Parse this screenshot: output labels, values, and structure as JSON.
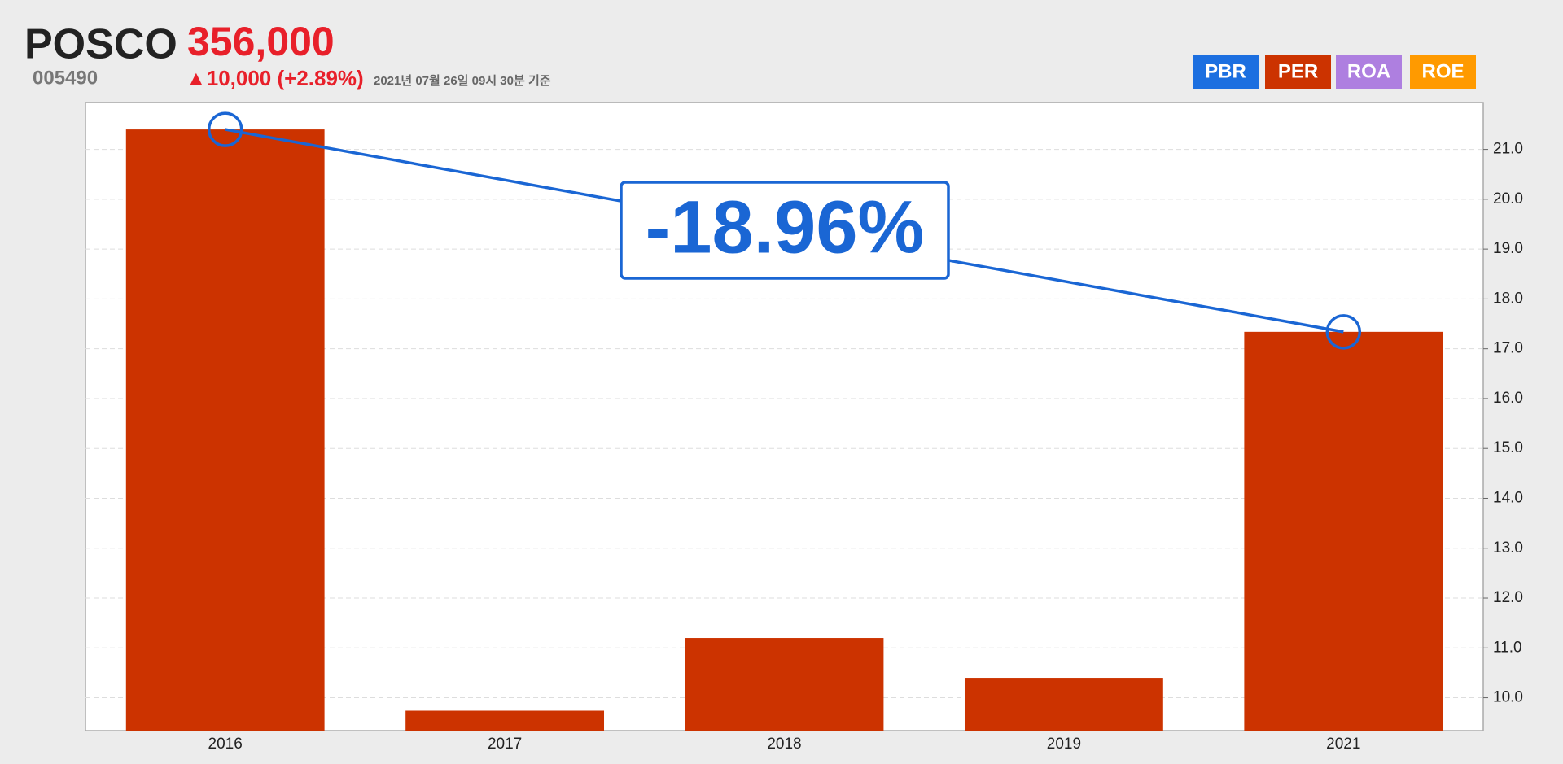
{
  "header": {
    "name": "POSCO",
    "code": "005490",
    "price": "356,000",
    "change": "▲10,000 (+2.89%)",
    "timestamp": "2021년 07월 26일 09시 30분 기준"
  },
  "buttons": [
    {
      "label": "PBR",
      "color": "#1c6fe0"
    },
    {
      "label": "PER",
      "color": "#cc3300"
    },
    {
      "label": "ROA",
      "color": "#ae7fe0"
    },
    {
      "label": "ROE",
      "color": "#ff9a00"
    }
  ],
  "chart_data": {
    "type": "bar",
    "categories": [
      "2016",
      "2017",
      "2018",
      "2019",
      "2021"
    ],
    "values": [
      21.4,
      9.74,
      11.2,
      10.4,
      17.34
    ],
    "color": "#cc3300",
    "ylim": [
      9.34,
      21.94
    ],
    "yticks": [
      {
        "value": 10,
        "label": "10.0"
      },
      {
        "value": 11,
        "label": "11.0"
      },
      {
        "value": 12,
        "label": "12.0"
      },
      {
        "value": 13,
        "label": "13.0"
      },
      {
        "value": 14,
        "label": "14.0"
      },
      {
        "value": 15,
        "label": "15.0"
      },
      {
        "value": 16,
        "label": "16.0"
      },
      {
        "value": 17,
        "label": "17.0"
      },
      {
        "value": 18,
        "label": "18.0"
      },
      {
        "value": 19,
        "label": "19.0"
      },
      {
        "value": 20,
        "label": "20.0"
      },
      {
        "value": 21,
        "label": "21.0"
      }
    ],
    "grid": true,
    "annotation": "-18.96%",
    "annotation_color": "#1a66d4"
  }
}
